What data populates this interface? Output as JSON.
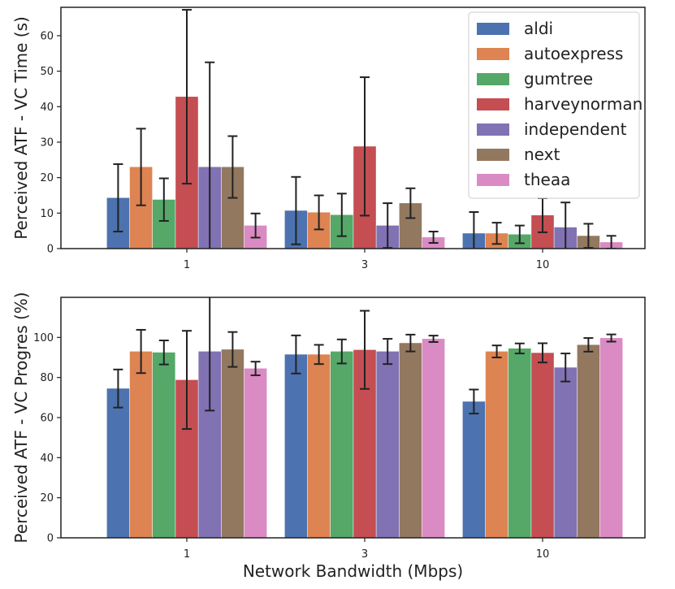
{
  "chart_data": [
    {
      "type": "bar",
      "categories": [
        "1",
        "3",
        "10"
      ],
      "ylabel": "Perceived ATF - VC Time (s)",
      "xlabel": "",
      "ylim": [
        0,
        68
      ],
      "yticks": [
        0,
        10,
        20,
        30,
        40,
        50,
        60
      ],
      "legend": "top-right",
      "series": [
        {
          "name": "aldi",
          "color": "#4C72B0",
          "values": [
            14.3,
            10.7,
            4.3
          ],
          "errors": [
            9.5,
            9.5,
            6.0
          ]
        },
        {
          "name": "autoexpress",
          "color": "#DD8452",
          "values": [
            23.0,
            10.2,
            4.3
          ],
          "errors": [
            10.8,
            4.8,
            3.0
          ]
        },
        {
          "name": "gumtree",
          "color": "#55A868",
          "values": [
            13.8,
            9.5,
            4.0
          ],
          "errors": [
            6.0,
            6.0,
            2.5
          ]
        },
        {
          "name": "harveynorman",
          "color": "#C44E52",
          "values": [
            42.8,
            28.8,
            9.4
          ],
          "errors": [
            24.5,
            19.5,
            4.8
          ]
        },
        {
          "name": "independent",
          "color": "#8172B3",
          "values": [
            23.0,
            6.5,
            6.0
          ],
          "errors": [
            29.5,
            6.3,
            7.0
          ]
        },
        {
          "name": "next",
          "color": "#937860",
          "values": [
            23.0,
            12.8,
            3.6
          ],
          "errors": [
            8.7,
            4.2,
            3.4
          ]
        },
        {
          "name": "theaa",
          "color": "#DA8BC3",
          "values": [
            6.5,
            3.2,
            1.8
          ],
          "errors": [
            3.4,
            1.6,
            1.8
          ]
        }
      ]
    },
    {
      "type": "bar",
      "categories": [
        "1",
        "3",
        "10"
      ],
      "ylabel": "Perceived ATF - VC Progres (%)",
      "xlabel": "Network Bandwidth (Mbps)",
      "ylim": [
        0,
        120
      ],
      "yticks": [
        0,
        20,
        40,
        60,
        80,
        100
      ],
      "series": [
        {
          "name": "aldi",
          "color": "#4C72B0",
          "values": [
            74.5,
            91.5,
            68.0
          ],
          "errors": [
            9.5,
            9.5,
            6.0
          ]
        },
        {
          "name": "autoexpress",
          "color": "#DD8452",
          "values": [
            93.0,
            91.5,
            93.0
          ],
          "errors": [
            10.8,
            4.8,
            3.0
          ]
        },
        {
          "name": "gumtree",
          "color": "#55A868",
          "values": [
            92.5,
            93.0,
            94.5
          ],
          "errors": [
            6.0,
            6.0,
            2.5
          ]
        },
        {
          "name": "harveynorman",
          "color": "#C44E52",
          "values": [
            78.8,
            93.8,
            92.3
          ],
          "errors": [
            24.5,
            19.5,
            4.8
          ]
        },
        {
          "name": "independent",
          "color": "#8172B3",
          "values": [
            93.0,
            93.0,
            85.0
          ],
          "errors": [
            29.5,
            6.3,
            7.0
          ]
        },
        {
          "name": "next",
          "color": "#937860",
          "values": [
            94.0,
            97.2,
            96.3
          ],
          "errors": [
            8.7,
            4.2,
            3.4
          ]
        },
        {
          "name": "theaa",
          "color": "#DA8BC3",
          "values": [
            84.5,
            99.3,
            99.7
          ],
          "errors": [
            3.4,
            1.6,
            1.8
          ]
        }
      ]
    }
  ]
}
